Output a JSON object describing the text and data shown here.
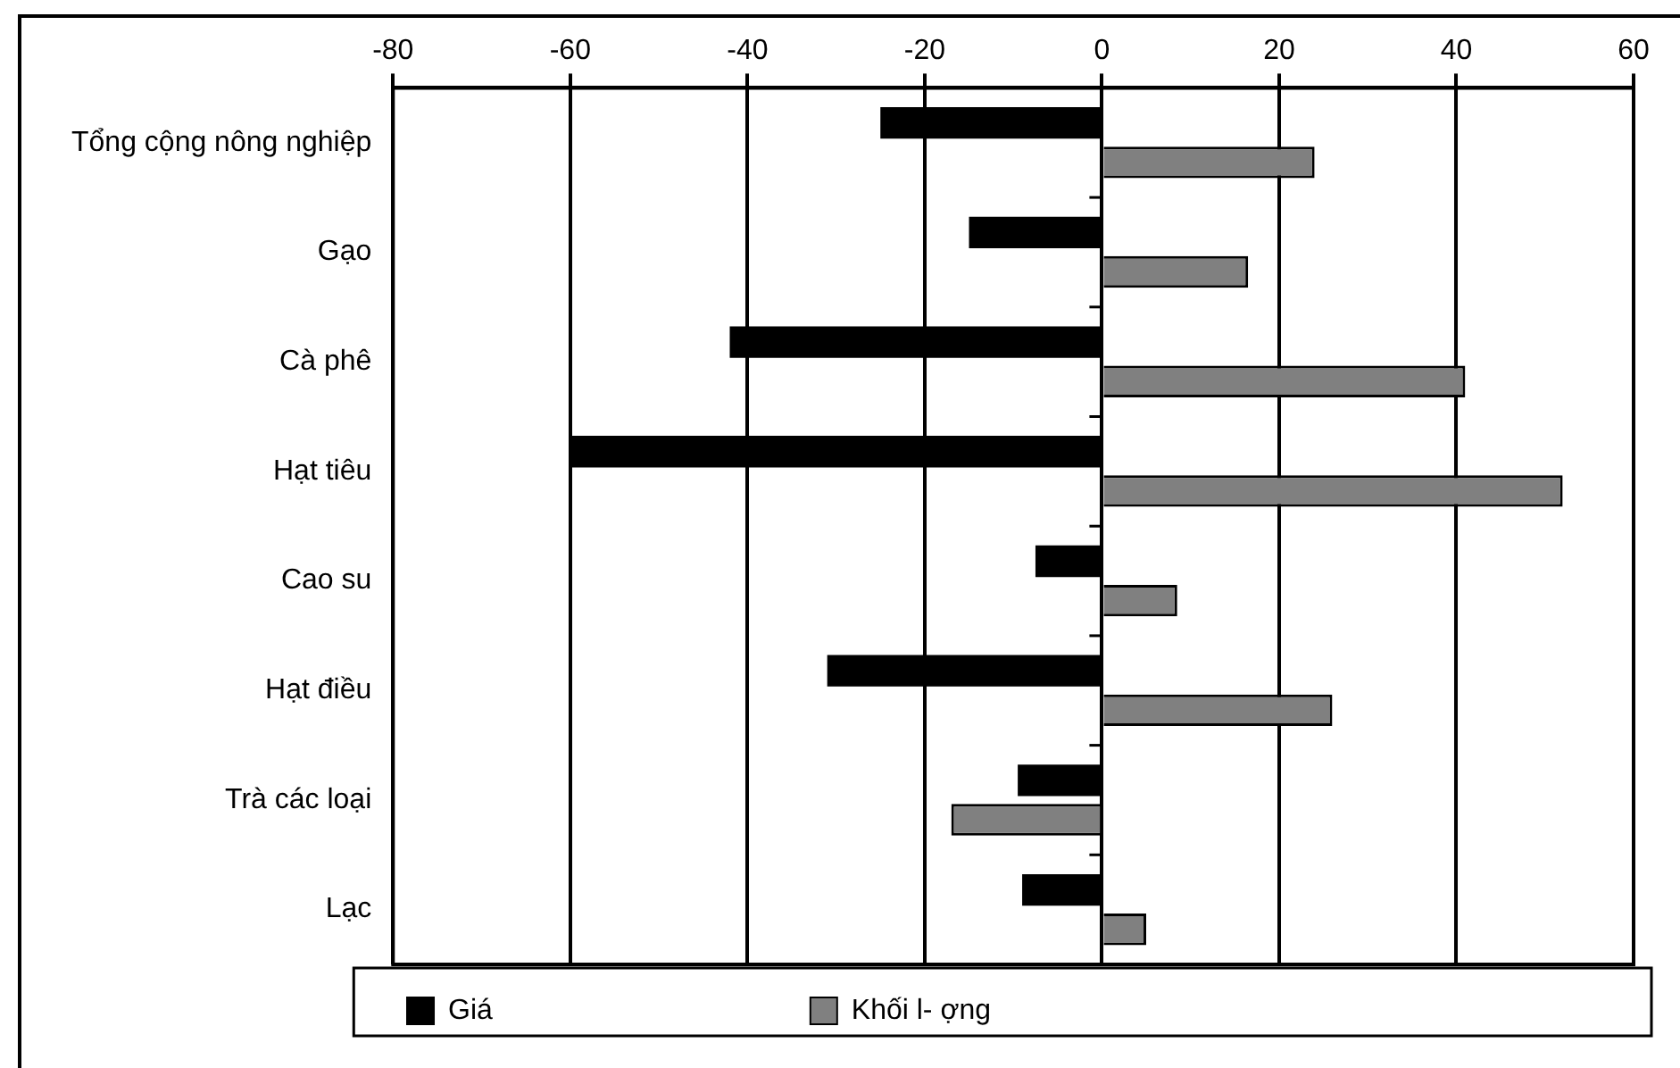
{
  "chart_data": {
    "type": "bar",
    "orientation": "horizontal",
    "categories": [
      "Tổng cộng nông nghiệp",
      "Gạo",
      "Cà phê",
      "Hạt tiêu",
      "Cao su",
      "Hạt điều",
      "Trà các loại",
      "Lạc"
    ],
    "series": [
      {
        "name": "Giá",
        "color": "#000000",
        "values": [
          -25,
          -15,
          -42,
          -60,
          -7.5,
          -31,
          -9.5,
          -9
        ]
      },
      {
        "name": "Khối l- ợng",
        "color": "#808080",
        "values": [
          24,
          16.5,
          41,
          52,
          8.5,
          26,
          -17,
          5
        ]
      }
    ],
    "xlim": [
      -80,
      60
    ],
    "xticks": [
      -80,
      -60,
      -40,
      -20,
      0,
      20,
      40,
      60
    ],
    "grid": "x",
    "legend": "bottom"
  }
}
